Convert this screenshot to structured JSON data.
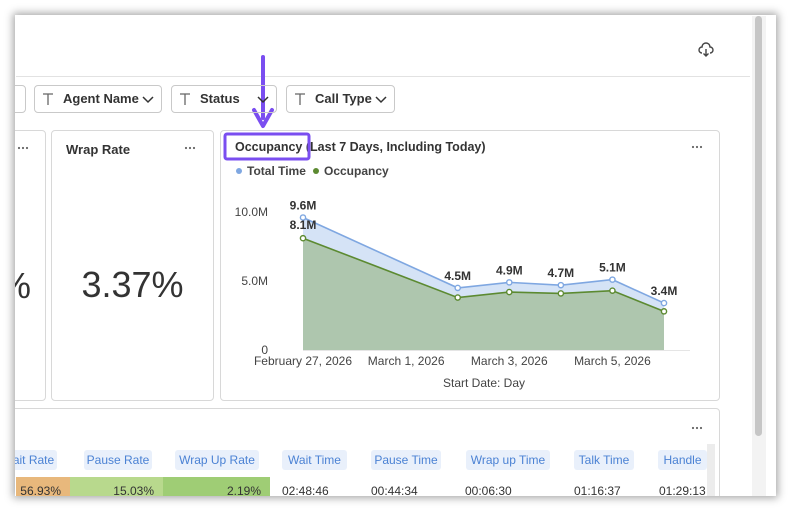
{
  "filters": [
    "Agent Name",
    "Status",
    "Call Type"
  ],
  "partial_card": {
    "value": "%"
  },
  "cards": [
    {
      "title": "Wrap Rate",
      "value": "3.37%"
    }
  ],
  "chart_data": {
    "type": "area",
    "title": "Occupancy (Last 7 Days, Including Today)",
    "x_label": "Start Date: Day",
    "x": [
      "2026-02-27",
      "2026-03-02",
      "2026-03-03",
      "2026-03-04",
      "2026-03-05",
      "2026-03-06"
    ],
    "xlim": [
      "2026-02-27",
      "2026-03-06"
    ],
    "xticks": [
      {
        "value": "2026-02-27",
        "label": "February 27, 2026"
      },
      {
        "value": "2026-03-01",
        "label": "March 1, 2026"
      },
      {
        "value": "2026-03-03",
        "label": "March 3, 2026"
      },
      {
        "value": "2026-03-05",
        "label": "March 5, 2026"
      }
    ],
    "ylim": [
      0,
      10000000
    ],
    "yticks": [
      0,
      {
        "value": 5000000,
        "label": "5.0M"
      },
      {
        "value": 10000000,
        "label": "10.0M"
      }
    ],
    "grid": false,
    "legend": "top-left",
    "series": [
      {
        "name": "Total Time",
        "color": "#7fa7e1",
        "fill": "#d5e3f6",
        "values": [
          9600000,
          4500000,
          4900000,
          4700000,
          5100000,
          3400000
        ],
        "value_labels": [
          "9.6M",
          "4.5M",
          "4.9M",
          "4.7M",
          "5.1M",
          "3.4M"
        ]
      },
      {
        "name": "Occupancy",
        "color": "#5c8a31",
        "fill": "#aec6ae",
        "values": [
          8100000,
          3800000,
          4200000,
          4100000,
          4300000,
          2800000
        ],
        "value_labels": [
          "8.1M",
          null,
          null,
          null,
          null,
          null
        ]
      }
    ]
  },
  "table": {
    "headers": [
      "ait Rate",
      "Pause Rate",
      "Wrap Up Rate",
      "Wait Time",
      "Pause Time",
      "Wrap up Time",
      "Talk Time",
      "Handle"
    ],
    "rows": [
      [
        "56.93%",
        "15.03%",
        "2.19%",
        "02:48:46",
        "00:44:34",
        "00:06:30",
        "01:16:37",
        "01:29:13"
      ]
    ]
  }
}
